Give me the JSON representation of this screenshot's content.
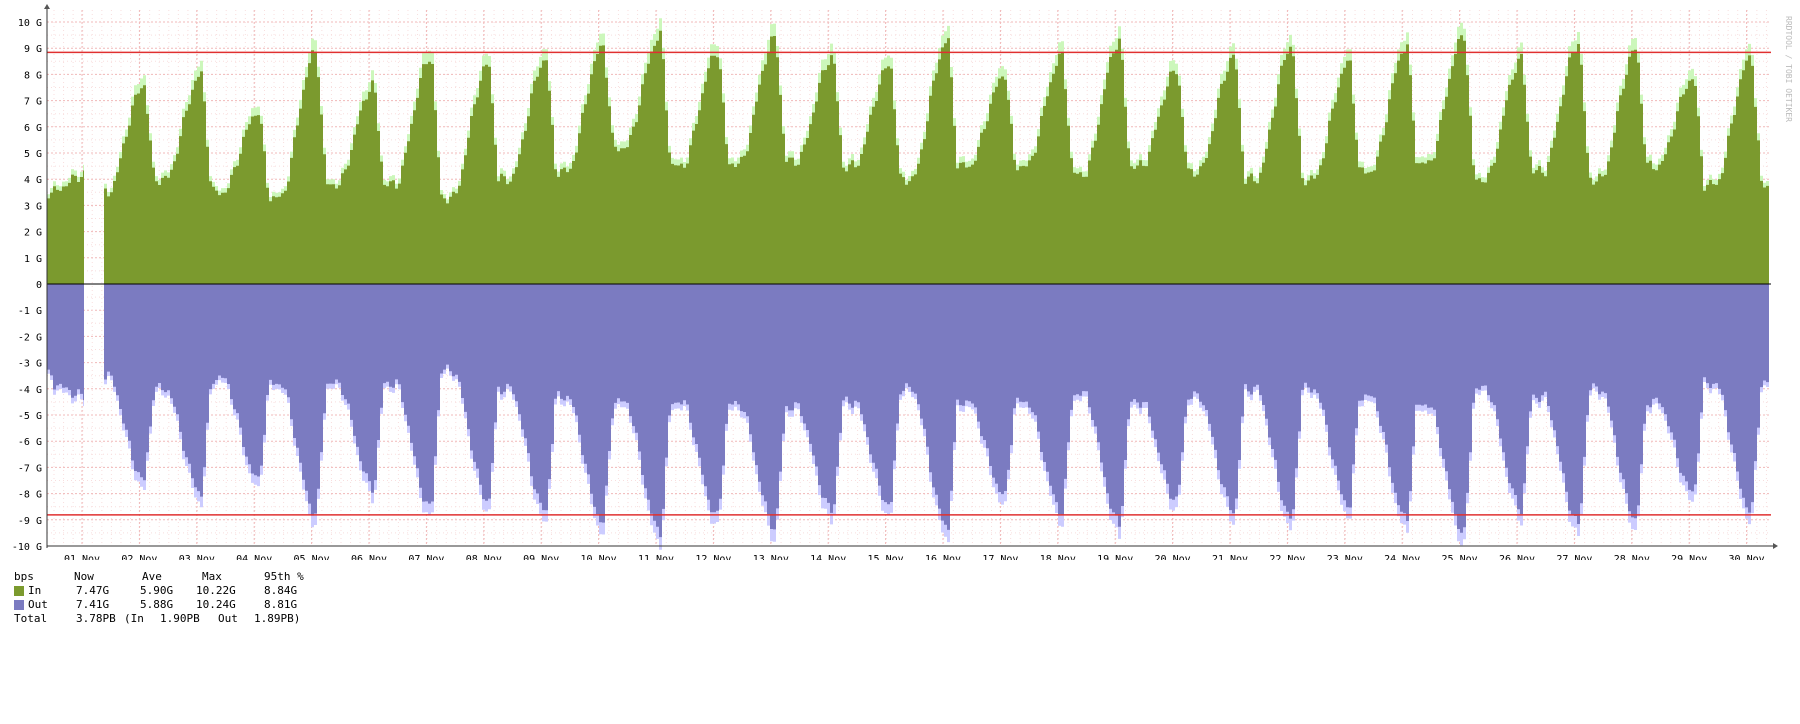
{
  "watermark": "RRDTOOL / TOBI OETIKER",
  "legend": {
    "unit": "bps",
    "headers": [
      "Now",
      "Ave",
      "Max",
      "95th %"
    ],
    "rows": [
      {
        "label": "In",
        "color": "#7b9a2e",
        "now": "7.47G",
        "ave": "5.90G",
        "max": "10.22G",
        "p95": "8.84G"
      },
      {
        "label": "Out",
        "color": "#7b7bc1",
        "now": "7.41G",
        "ave": "5.88G",
        "max": "10.24G",
        "p95": "8.81G"
      }
    ],
    "total": {
      "label": "Total",
      "value": "3.78PB",
      "in_label": "(In",
      "in_value": "1.90PB",
      "out_label": "Out",
      "out_value": "1.89PB)"
    }
  },
  "chart_data": {
    "type": "area",
    "x": [
      "01 Nov",
      "02 Nov",
      "03 Nov",
      "04 Nov",
      "05 Nov",
      "06 Nov",
      "07 Nov",
      "08 Nov",
      "09 Nov",
      "10 Nov",
      "11 Nov",
      "12 Nov",
      "13 Nov",
      "14 Nov",
      "15 Nov",
      "16 Nov",
      "17 Nov",
      "18 Nov",
      "19 Nov",
      "20 Nov",
      "21 Nov",
      "22 Nov",
      "23 Nov",
      "24 Nov",
      "25 Nov",
      "26 Nov",
      "27 Nov",
      "28 Nov",
      "29 Nov",
      "30 Nov"
    ],
    "y_ticks": [
      "10 G",
      "9 G",
      "8 G",
      "7 G",
      "6 G",
      "5 G",
      "4 G",
      "3 G",
      "2 G",
      "1 G",
      "0",
      "-1 G",
      "-2 G",
      "-3 G",
      "-4 G",
      "-5 G",
      "-6 G",
      "-7 G",
      "-8 G",
      "-9 G",
      "-10 G"
    ],
    "ylim": [
      -10.2,
      10.2
    ],
    "p95_lines": {
      "in": 8.84,
      "out": -8.81
    },
    "series": [
      {
        "name": "In",
        "color": "#7b9a2e",
        "max_color": "#ccf7bb",
        "daily_peak": [
          4.2,
          7.6,
          8.0,
          6.6,
          8.9,
          7.6,
          8.7,
          8.4,
          8.6,
          9.1,
          9.5,
          8.9,
          9.4,
          8.7,
          8.4,
          9.3,
          8.0,
          8.7,
          9.3,
          8.2,
          8.7,
          9.1,
          8.5,
          9.1,
          9.5,
          8.6,
          9.2,
          9.0,
          7.9,
          8.7
        ],
        "daily_trough": [
          3.5,
          3.5,
          4.0,
          3.5,
          3.3,
          3.8,
          3.8,
          3.3,
          4.0,
          4.3,
          5.2,
          4.5,
          4.6,
          4.7,
          4.5,
          4.0,
          4.5,
          4.5,
          4.2,
          4.5,
          4.3,
          4.0,
          4.0,
          4.3,
          4.6,
          4.0,
          4.3,
          4.0,
          4.5,
          3.8
        ]
      },
      {
        "name": "Out",
        "color": "#7b7bc1",
        "max_color": "#ccccff",
        "daily_peak": [
          -4.3,
          -7.5,
          -8.0,
          -7.5,
          -8.8,
          -7.8,
          -8.6,
          -8.3,
          -8.7,
          -9.1,
          -9.5,
          -8.9,
          -9.3,
          -8.7,
          -8.5,
          -9.3,
          -8.1,
          -8.7,
          -9.2,
          -8.3,
          -8.7,
          -9.0,
          -8.5,
          -9.0,
          -9.5,
          -8.6,
          -9.2,
          -9.0,
          -8.0,
          -8.7
        ],
        "daily_trough": [
          -3.8,
          -3.5,
          -4.0,
          -3.6,
          -3.8,
          -3.8,
          -3.8,
          -3.3,
          -4.0,
          -4.3,
          -4.5,
          -4.5,
          -4.6,
          -4.7,
          -4.5,
          -4.0,
          -4.5,
          -4.5,
          -4.2,
          -4.5,
          -4.3,
          -4.0,
          -4.0,
          -4.3,
          -4.6,
          -4.0,
          -4.3,
          -4.0,
          -4.5,
          -3.8
        ]
      }
    ],
    "grid": true
  }
}
